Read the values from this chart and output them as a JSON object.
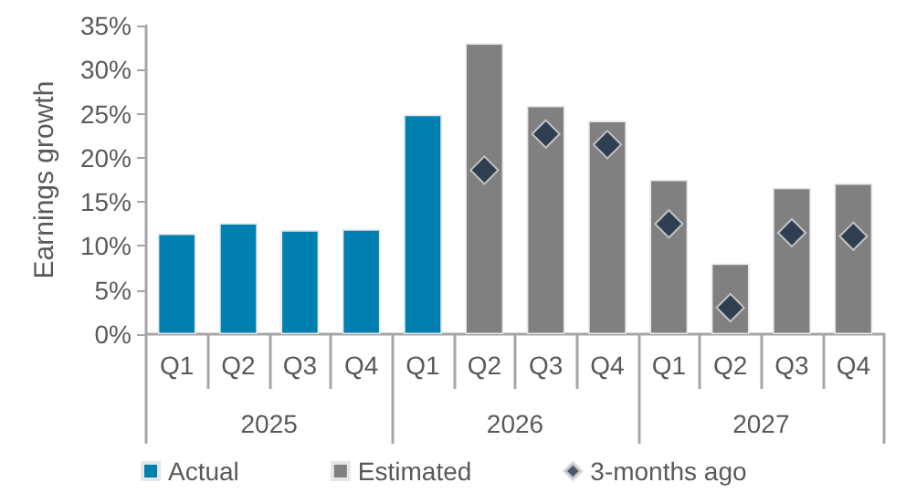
{
  "chart_data": {
    "type": "bar",
    "ylabel": "Earnings growth",
    "categories": [
      "Q1",
      "Q2",
      "Q3",
      "Q4",
      "Q1",
      "Q2",
      "Q3",
      "Q4",
      "Q1",
      "Q2",
      "Q3",
      "Q4"
    ],
    "annotations": [
      "2025",
      "2026",
      "2027"
    ],
    "series": [
      {
        "name": "Actual",
        "color": "#0080b0",
        "values": [
          11.4,
          12.6,
          11.8,
          11.9,
          24.9,
          null,
          null,
          null,
          null,
          null,
          null,
          null
        ]
      },
      {
        "name": "Estimated",
        "color": "#808080",
        "values": [
          null,
          null,
          null,
          null,
          null,
          33.0,
          25.9,
          24.2,
          17.5,
          8.0,
          16.6,
          17.1
        ]
      },
      {
        "name": "3-months ago",
        "type": "scatter",
        "marker": "diamond",
        "color": "#1a2e45",
        "values": [
          null,
          null,
          null,
          null,
          null,
          18.6,
          22.7,
          21.5,
          12.5,
          3.0,
          11.5,
          11.1
        ]
      }
    ],
    "ylim": [
      0,
      35
    ],
    "yticks": [
      {
        "value": 0,
        "label": "0%"
      },
      {
        "value": 5,
        "label": "5%"
      },
      {
        "value": 10,
        "label": "10%"
      },
      {
        "value": 15,
        "label": "15%"
      },
      {
        "value": 20,
        "label": "20%"
      },
      {
        "value": 25,
        "label": "25%"
      },
      {
        "value": 30,
        "label": "30%"
      },
      {
        "value": 35,
        "label": "35%"
      }
    ],
    "grid": false,
    "legend": "bottom"
  }
}
